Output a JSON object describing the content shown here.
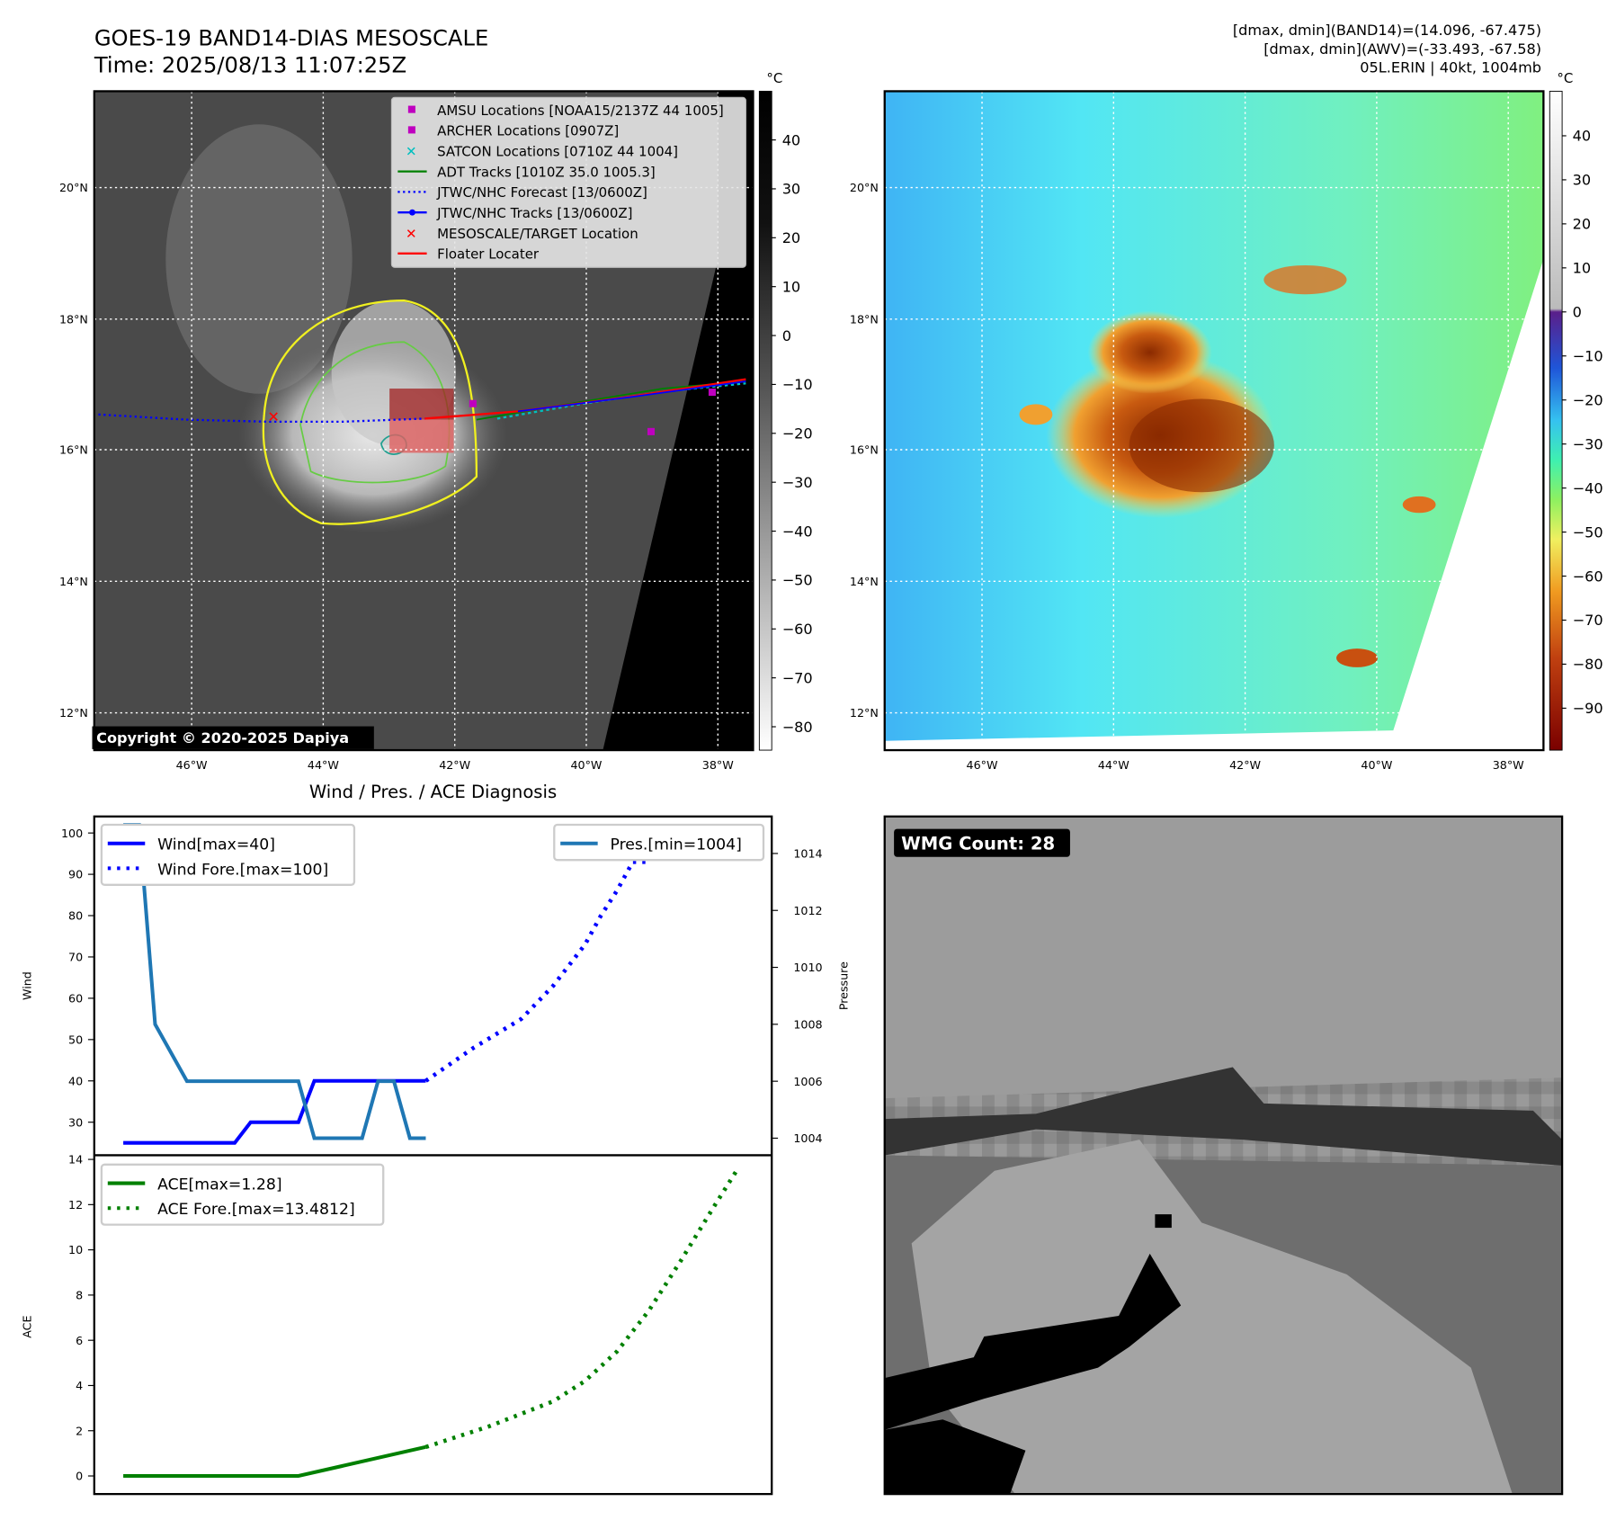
{
  "header": {
    "title": "GOES-19 BAND14-DIAS MESOSCALE",
    "time": "Time: 2025/08/13 11:07:25Z",
    "stats": [
      "[dmax, dmin](BAND14)=(14.096, -67.475)",
      "[dmax, dmin](AWV)=(-33.493, -67.58)",
      "05L.ERIN | 40kt, 1004mb"
    ]
  },
  "maps": {
    "lon_ticks": [
      "46°W",
      "44°W",
      "42°W",
      "40°W",
      "38°W"
    ],
    "lat_ticks": [
      "20°N",
      "18°N",
      "16°N",
      "14°N",
      "12°N"
    ],
    "colorbar_unit": "°C",
    "left_colorbar_ticks": [
      "40",
      "30",
      "20",
      "10",
      "0",
      "−10",
      "−20",
      "−30",
      "−40",
      "−50",
      "−60",
      "−70",
      "−80"
    ],
    "right_colorbar_ticks": [
      "40",
      "30",
      "20",
      "10",
      "0",
      "−10",
      "−20",
      "−30",
      "−40",
      "−50",
      "−60",
      "−70",
      "−80",
      "−90"
    ],
    "copyright": "Copyright © 2020-2025 Dapiya",
    "legend": [
      {
        "label": "AMSU Locations [NOAA15/2137Z 44 1005]",
        "marker": "square",
        "color": "#bf00bf"
      },
      {
        "label": "ARCHER Locations [0907Z]",
        "marker": "square",
        "color": "#bf00bf"
      },
      {
        "label": "SATCON Locations [0710Z 44 1004]",
        "marker": "x",
        "color": "#00bfbf"
      },
      {
        "label": "ADT Tracks [1010Z 35.0 1005.3]",
        "marker": "line",
        "color": "#008000"
      },
      {
        "label": "JTWC/NHC Forecast [13/0600Z]",
        "marker": "dotted",
        "color": "#0000ff"
      },
      {
        "label": "JTWC/NHC Tracks [13/0600Z]",
        "marker": "line-dot",
        "color": "#0000ff"
      },
      {
        "label": "MESOSCALE/TARGET Location",
        "marker": "x",
        "color": "#ff0000"
      },
      {
        "label": "Floater Locater",
        "marker": "line",
        "color": "#ff0000"
      }
    ]
  },
  "wmg": {
    "label": "WMG Count: 28"
  },
  "chart_data": [
    {
      "type": "line",
      "title": "Wind / Pres. / ACE Diagnosis",
      "ylabel": "Wind",
      "ylabel_right": "Pressure",
      "ylim": [
        22,
        104
      ],
      "ylim_right": [
        1003.4,
        1015.3
      ],
      "yticks": [
        30,
        40,
        50,
        60,
        70,
        80,
        90,
        100
      ],
      "yticks_right": [
        1004,
        1006,
        1008,
        1010,
        1012,
        1014
      ],
      "series": [
        {
          "name": "Wind[max=40]",
          "color": "#0000ff",
          "style": "solid",
          "axis": "left",
          "points": [
            [
              0,
              25
            ],
            [
              7,
              25
            ],
            [
              8,
              30
            ],
            [
              11,
              30
            ],
            [
              12,
              40
            ],
            [
              19,
              40
            ]
          ]
        },
        {
          "name": "Wind Fore.[max=100]",
          "color": "#0000ff",
          "style": "dotted",
          "axis": "left",
          "points": [
            [
              19,
              40
            ],
            [
              22,
              48
            ],
            [
              25,
              55
            ],
            [
              27,
              63
            ],
            [
              29,
              73
            ],
            [
              30,
              80
            ],
            [
              31,
              86
            ],
            [
              32,
              93
            ],
            [
              33,
              93
            ],
            [
              34,
              100
            ],
            [
              38.5,
              100
            ]
          ]
        },
        {
          "name": "Pres.[min=1004]",
          "color": "#1f77b4",
          "style": "solid",
          "axis": "right",
          "points": [
            [
              0,
              1015
            ],
            [
              1,
              1015
            ],
            [
              2,
              1008
            ],
            [
              4,
              1006
            ],
            [
              11,
              1006
            ],
            [
              12,
              1004
            ],
            [
              15,
              1004
            ],
            [
              16,
              1006
            ],
            [
              17,
              1006
            ],
            [
              18,
              1004
            ],
            [
              19,
              1004
            ]
          ]
        }
      ]
    },
    {
      "type": "line",
      "ylabel": "ACE",
      "ylim": [
        -0.8,
        14
      ],
      "yticks": [
        0,
        2,
        4,
        6,
        8,
        10,
        12,
        14
      ],
      "series": [
        {
          "name": "ACE[max=1.28]",
          "color": "#008000",
          "style": "solid",
          "points": [
            [
              0,
              0
            ],
            [
              11,
              0
            ],
            [
              19,
              1.28
            ]
          ]
        },
        {
          "name": "ACE Fore.[max=13.4812]",
          "color": "#008000",
          "style": "dotted",
          "points": [
            [
              19,
              1.28
            ],
            [
              23,
              2.2
            ],
            [
              27,
              3.3
            ],
            [
              29,
              4.2
            ],
            [
              31,
              5.5
            ],
            [
              33,
              7.3
            ],
            [
              35,
              9.5
            ],
            [
              37,
              11.8
            ],
            [
              38.5,
              13.48
            ]
          ]
        }
      ]
    }
  ]
}
